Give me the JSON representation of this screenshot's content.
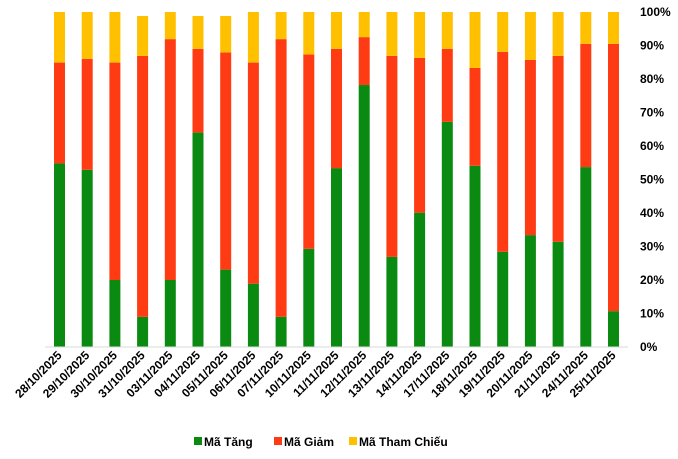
{
  "chart_data": {
    "type": "bar",
    "stacked": true,
    "title": "",
    "xlabel": "",
    "ylabel": "",
    "ylim": [
      0,
      100
    ],
    "y_ticks": [
      "0%",
      "10%",
      "20%",
      "30%",
      "40%",
      "50%",
      "60%",
      "70%",
      "80%",
      "90%",
      "100%"
    ],
    "y_axis_side": "right",
    "grid": false,
    "legend_position": "bottom",
    "categories": [
      "28/10/2025",
      "29/10/2025",
      "30/10/2025",
      "31/10/2025",
      "03/11/2025",
      "04/11/2025",
      "05/11/2025",
      "06/11/2025",
      "07/11/2025",
      "10/11/2025",
      "11/11/2025",
      "12/11/2025",
      "13/11/2025",
      "14/11/2025",
      "17/11/2025",
      "18/11/2025",
      "19/11/2025",
      "20/11/2025",
      "21/11/2025",
      "24/11/2025",
      "25/11/2025"
    ],
    "series": [
      {
        "name": "Mã Tăng",
        "color": "#0b8a12",
        "values": [
          54.8,
          52.9,
          20.0,
          9.0,
          20.0,
          64.0,
          23.1,
          18.9,
          9.0,
          29.3,
          53.4,
          78.2,
          26.9,
          40.1,
          67.2,
          54.1,
          28.4,
          33.4,
          31.4,
          53.7,
          10.7
        ]
      },
      {
        "name": "Mã Giảm",
        "color": "#ff3b14",
        "values": [
          30.1,
          33.1,
          64.9,
          77.9,
          71.9,
          25.0,
          64.8,
          66.0,
          82.9,
          58.0,
          35.6,
          14.3,
          60.0,
          46.2,
          21.8,
          29.2,
          59.7,
          52.3,
          55.5,
          36.8,
          79.8
        ]
      },
      {
        "name": "Mã Tham Chiếu",
        "color": "#ffc000",
        "values": [
          15.1,
          14.0,
          15.1,
          11.9,
          8.1,
          9.8,
          10.9,
          15.1,
          8.1,
          12.7,
          11.0,
          7.5,
          13.1,
          13.7,
          11.0,
          16.7,
          11.9,
          14.3,
          13.1,
          9.5,
          9.5
        ]
      }
    ]
  }
}
